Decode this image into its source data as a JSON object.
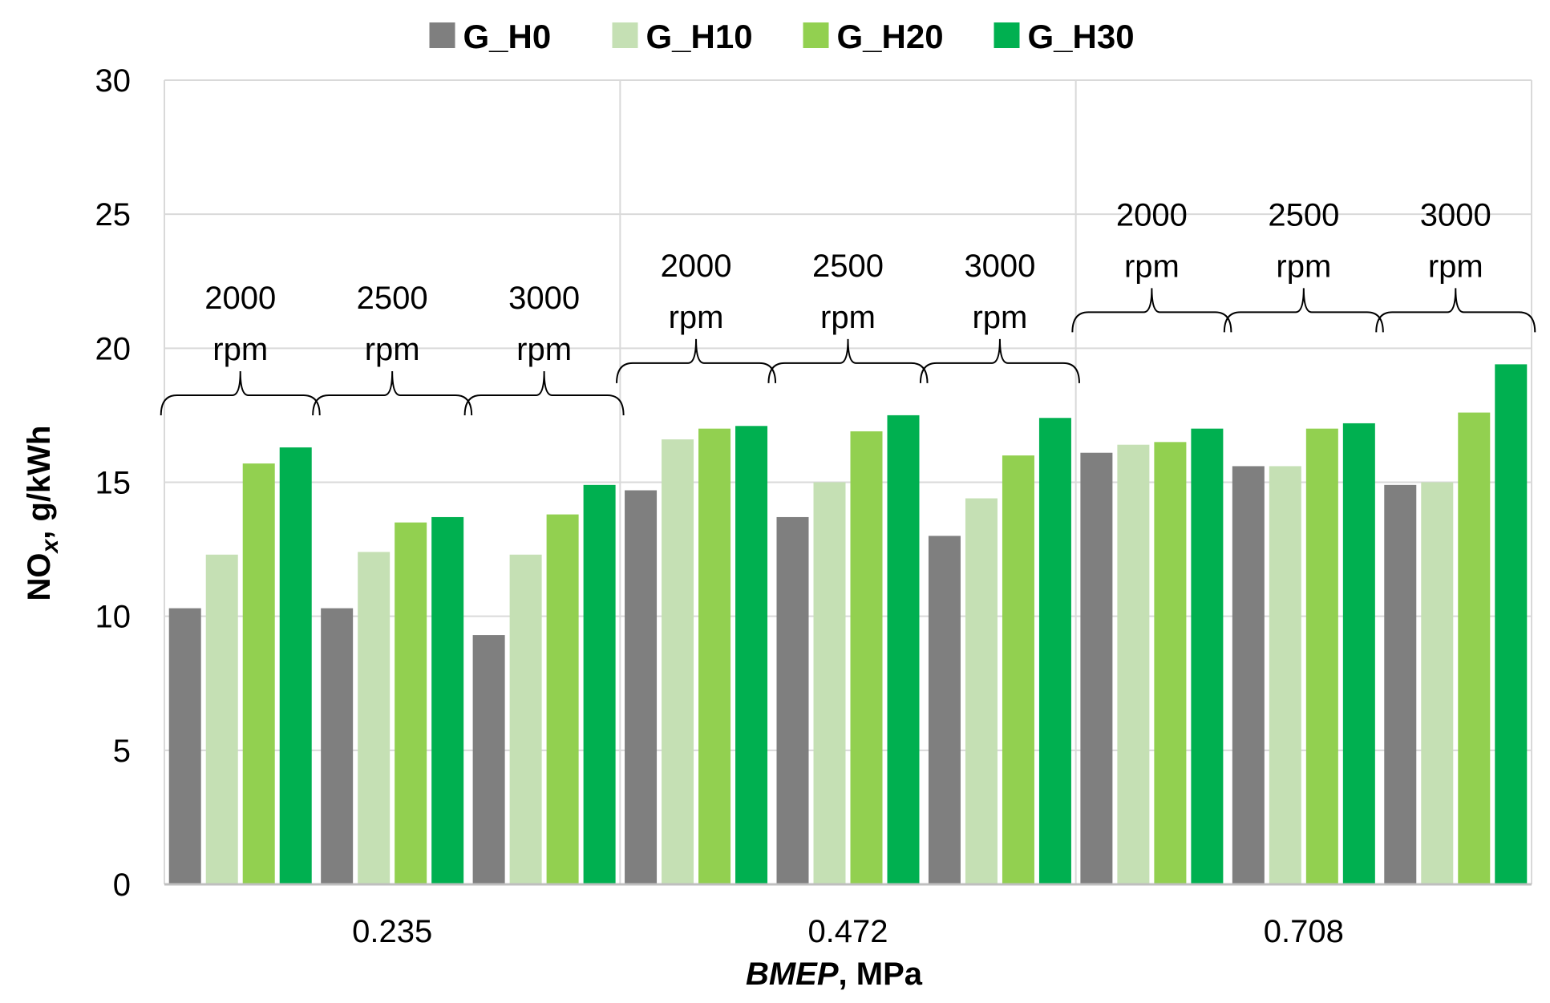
{
  "chart_data": {
    "type": "bar",
    "title": "",
    "xlabel_italic": "BMEP",
    "xlabel_rest": ", MPa",
    "ylabel_prefix": "NO",
    "ylabel_sub": "x",
    "ylabel_suffix": ", g/kWh",
    "ylim": [
      0,
      30
    ],
    "yticks": [
      0,
      5,
      10,
      15,
      20,
      25,
      30
    ],
    "grid": true,
    "legend_position": "top",
    "groups": [
      "0.235",
      "0.472",
      "0.708"
    ],
    "speeds": [
      "2000",
      "2500",
      "3000"
    ],
    "speed_unit": "rpm",
    "series": [
      {
        "name": "G_H0",
        "color": "#7f7f7f",
        "values": [
          10.3,
          10.3,
          9.3,
          14.7,
          13.7,
          13.0,
          16.1,
          15.6,
          14.9
        ]
      },
      {
        "name": "G_H10",
        "color": "#c5e0b4",
        "values": [
          12.3,
          12.4,
          12.3,
          16.6,
          15.0,
          14.4,
          16.4,
          15.6,
          15.0
        ]
      },
      {
        "name": "G_H20",
        "color": "#92d050",
        "values": [
          15.7,
          13.5,
          13.8,
          17.0,
          16.9,
          16.0,
          16.5,
          17.0,
          17.6
        ]
      },
      {
        "name": "G_H30",
        "color": "#00b050",
        "values": [
          16.3,
          13.7,
          14.9,
          17.1,
          17.5,
          17.4,
          17.0,
          17.2,
          19.4
        ]
      }
    ]
  }
}
